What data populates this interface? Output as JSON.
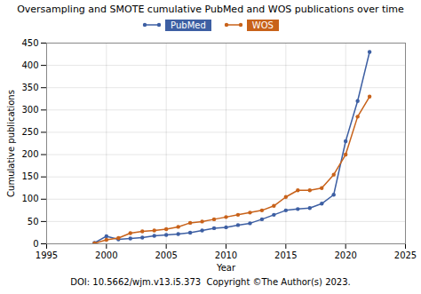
{
  "chart_data": {
    "type": "line",
    "title": "Oversampling and SMOTE cumulative PubMed and WOS publications over time",
    "x_label": "Year",
    "y_label": "Cumulative publications",
    "x": [
      1999,
      2000,
      2001,
      2002,
      2003,
      2004,
      2005,
      2006,
      2007,
      2008,
      2009,
      2010,
      2011,
      2012,
      2013,
      2014,
      2015,
      2016,
      2017,
      2018,
      2019,
      2020,
      2021,
      2022
    ],
    "series": [
      {
        "name": "PubMed",
        "color": "#3d5fa3",
        "marker": "circle",
        "line_style": "solid",
        "values": [
          2,
          17,
          10,
          12,
          14,
          18,
          20,
          22,
          25,
          30,
          35,
          37,
          42,
          46,
          55,
          65,
          75,
          78,
          80,
          90,
          110,
          230,
          320,
          430
        ]
      },
      {
        "name": "WOS",
        "color": "#c8621a",
        "marker": "circle",
        "line_style": "solid",
        "values": [
          1,
          9,
          13,
          24,
          28,
          30,
          33,
          38,
          47,
          50,
          55,
          60,
          65,
          70,
          75,
          85,
          105,
          120,
          120,
          125,
          155,
          200,
          285,
          330
        ]
      }
    ],
    "xlim": [
      1995,
      2025
    ],
    "xticks": [
      1995,
      2000,
      2005,
      2010,
      2015,
      2020,
      2025
    ],
    "ylim": [
      0,
      450
    ],
    "yticks": [
      0,
      50,
      100,
      150,
      200,
      250,
      300,
      350,
      400,
      450
    ],
    "grid": true,
    "legend": "top",
    "annotations": [
      "DOI: 10.5662/wjm.v13.i5.373  Copyright ©The Author(s) 2023."
    ]
  }
}
